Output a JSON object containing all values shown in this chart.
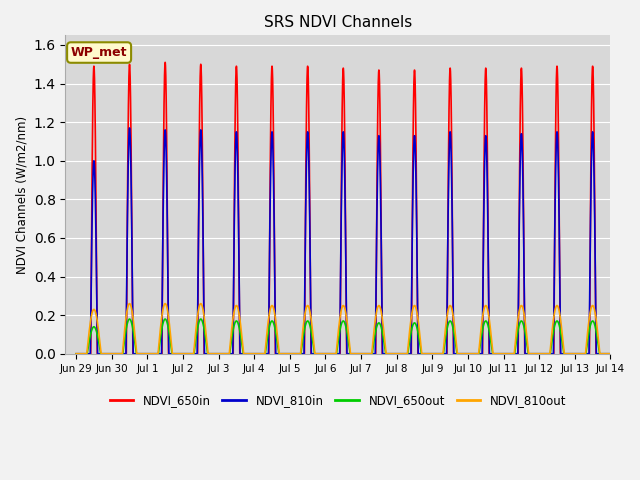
{
  "title": "SRS NDVI Channels",
  "ylabel": "NDVI Channels (W/m2/nm)",
  "annotation": "WP_met",
  "annotation_color": "#8B0000",
  "annotation_bg": "#FFFACD",
  "annotation_border": "#8B8B00",
  "ylim": [
    0.0,
    1.65
  ],
  "yticks": [
    0.0,
    0.2,
    0.4,
    0.6,
    0.8,
    1.0,
    1.2,
    1.4,
    1.6
  ],
  "bg_color": "#D8D8D8",
  "fig_color": "#F2F2F2",
  "colors": {
    "NDVI_650in": "#FF0000",
    "NDVI_810in": "#0000CC",
    "NDVI_650out": "#00CC00",
    "NDVI_810out": "#FFA500"
  },
  "linewidth": 1.2,
  "xtick_labels": [
    "Jun 29",
    "Jun 30",
    "Jul 1",
    "Jul 2",
    "Jul 3",
    "Jul 4",
    "Jul 5",
    "Jul 6",
    "Jul 7",
    "Jul 8",
    "Jul 9",
    "Jul 10",
    "Jul 11",
    "Jul 12",
    "Jul 13",
    "Jul 14"
  ]
}
